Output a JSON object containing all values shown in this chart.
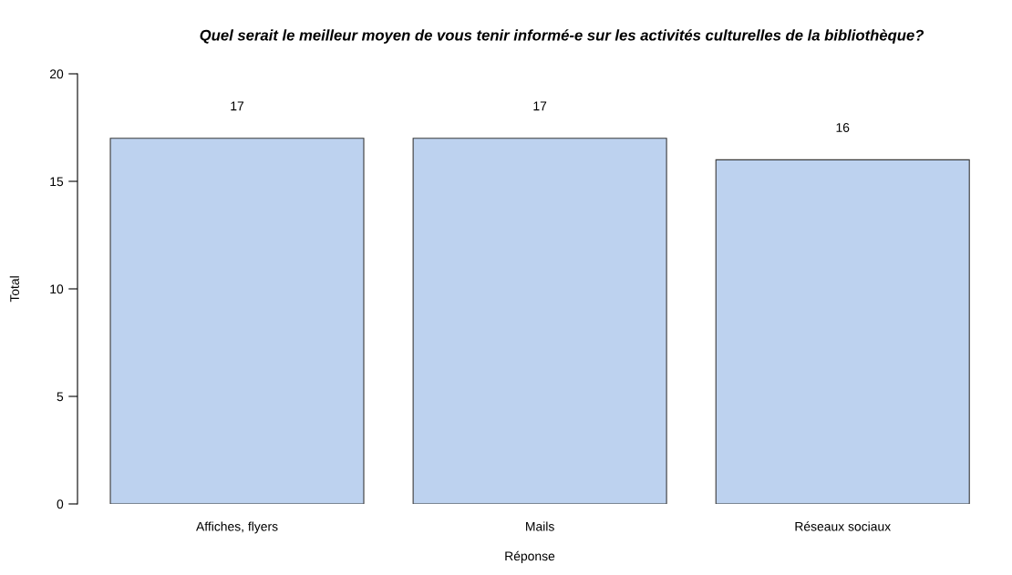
{
  "chart_data": {
    "type": "bar",
    "title": "Quel serait le meilleur moyen de vous tenir informé-e sur les activités culturelles de la bibliothèque?",
    "xlabel": "Réponse",
    "ylabel": "Total",
    "categories": [
      "Affiches, flyers",
      "Mails",
      "Réseaux sociaux"
    ],
    "values": [
      17,
      17,
      16
    ],
    "color": "#bdd2ef",
    "ylim": [
      0,
      20
    ],
    "yticks": [
      0,
      5,
      10,
      15,
      20
    ],
    "grid": false,
    "data_labels": true
  }
}
